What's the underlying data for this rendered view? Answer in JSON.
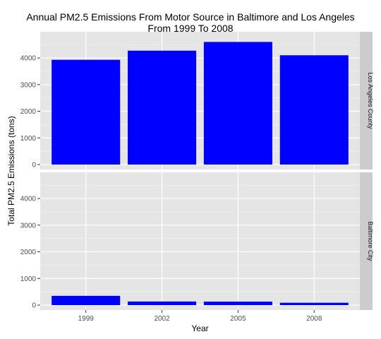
{
  "chart_data": {
    "type": "bar",
    "title": "Annual PM2.5 Emissions From Motor Source in Baltimore and Los Angeles",
    "subtitle": "From 1999 To 2008",
    "xlabel": "Year",
    "ylabel": "Total PM2.5 Emissions (tons)",
    "categories": [
      "1999",
      "2002",
      "2005",
      "2008"
    ],
    "ylim": [
      0,
      4850
    ],
    "yticks": [
      0,
      1000,
      2000,
      3000,
      4000
    ],
    "ytick_labels": [
      "0",
      "1000",
      "2000",
      "3000",
      "4000"
    ],
    "grid": true,
    "bar_color": "#0000ff",
    "panel_background": "#e5e5e5",
    "strip_background": "#cccccc",
    "series": [
      {
        "name": "Los Angeles County",
        "values": [
          3931,
          4274,
          4601,
          4101
        ]
      },
      {
        "name": "Baltimore City",
        "values": [
          347,
          134,
          130,
          88
        ]
      }
    ]
  }
}
